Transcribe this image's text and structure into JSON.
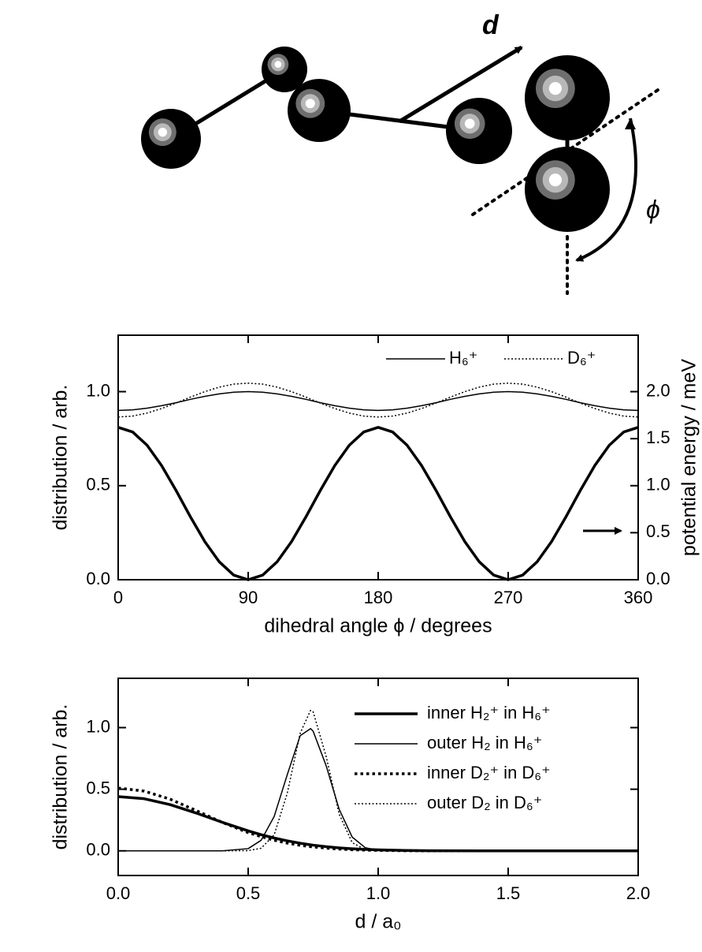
{
  "diagram": {
    "vector_label": "d",
    "angle_label": "ϕ"
  },
  "chart_data": [
    {
      "type": "line",
      "xlabel": "dihedral angle ϕ / degrees",
      "ylabel": "distribution / arb.",
      "y2label": "potential energy / meV",
      "x": [
        0,
        10,
        20,
        30,
        40,
        50,
        60,
        70,
        80,
        90,
        100,
        110,
        120,
        130,
        140,
        150,
        160,
        170,
        180,
        190,
        200,
        210,
        220,
        230,
        240,
        250,
        260,
        270,
        280,
        290,
        300,
        310,
        320,
        330,
        340,
        350,
        360
      ],
      "xlim": [
        0,
        360
      ],
      "xticks": [
        0,
        90,
        180,
        270,
        360
      ],
      "ylim": [
        0,
        1.3
      ],
      "yticks": [
        {
          "value": 0,
          "label": "0.0"
        },
        {
          "value": 0.5,
          "label": "0.5"
        },
        {
          "value": 1,
          "label": "1.0"
        }
      ],
      "y2lim": [
        0,
        2.6
      ],
      "y2ticks": [
        {
          "value": 0,
          "label": "0.0"
        },
        {
          "value": 0.5,
          "label": "0.5"
        },
        {
          "value": 1,
          "label": "1.0"
        },
        {
          "value": 1.5,
          "label": "1.5"
        },
        {
          "value": 2,
          "label": "2.0"
        }
      ],
      "legend": "upper right",
      "series": [
        {
          "name": "H₆⁺",
          "color": "#000000",
          "style": "solid",
          "line_width": 1.5,
          "values": [
            0.9,
            0.903,
            0.912,
            0.925,
            0.941,
            0.959,
            0.975,
            0.988,
            0.997,
            1.0,
            0.997,
            0.988,
            0.975,
            0.959,
            0.941,
            0.925,
            0.912,
            0.903,
            0.9,
            0.903,
            0.912,
            0.925,
            0.941,
            0.959,
            0.975,
            0.988,
            0.997,
            1.0,
            0.997,
            0.988,
            0.975,
            0.959,
            0.941,
            0.925,
            0.912,
            0.903,
            0.9
          ]
        },
        {
          "name": "D₆⁺",
          "color": "#000000",
          "style": "dotted",
          "line_width": 1.5,
          "values": [
            0.865,
            0.87,
            0.886,
            0.91,
            0.939,
            0.971,
            1.0,
            1.024,
            1.04,
            1.045,
            1.04,
            1.024,
            1.0,
            0.971,
            0.939,
            0.91,
            0.886,
            0.87,
            0.865,
            0.87,
            0.886,
            0.91,
            0.939,
            0.971,
            1.0,
            1.024,
            1.04,
            1.045,
            1.04,
            1.024,
            1.0,
            0.971,
            0.939,
            0.91,
            0.886,
            0.87,
            0.865
          ]
        },
        {
          "axis": "y2",
          "color": "#000000",
          "style": "solid",
          "line_width": 3.5,
          "values": [
            1.62,
            1.571,
            1.43,
            1.215,
            0.951,
            0.669,
            0.405,
            0.19,
            0.049,
            0,
            0.049,
            0.19,
            0.405,
            0.669,
            0.951,
            1.215,
            1.43,
            1.571,
            1.62,
            1.571,
            1.43,
            1.215,
            0.951,
            0.669,
            0.405,
            0.19,
            0.049,
            0,
            0.049,
            0.19,
            0.405,
            0.669,
            0.951,
            1.215,
            1.43,
            1.571,
            1.62
          ]
        }
      ]
    },
    {
      "type": "line",
      "xlabel": "d / a₀",
      "ylabel": "distribution / arb.",
      "x": [
        0,
        0.1,
        0.2,
        0.3,
        0.4,
        0.5,
        0.55,
        0.6,
        0.65,
        0.7,
        0.74,
        0.75,
        0.8,
        0.85,
        0.9,
        0.95,
        1.0,
        1.1,
        1.2,
        1.4,
        1.6,
        1.8,
        2.0
      ],
      "xlim": [
        0,
        2
      ],
      "xticks": [
        {
          "value": 0,
          "label": "0.0"
        },
        {
          "value": 0.5,
          "label": "0.5"
        },
        {
          "value": 1,
          "label": "1.0"
        },
        {
          "value": 1.5,
          "label": "1.5"
        },
        {
          "value": 2,
          "label": "2.0"
        }
      ],
      "ylim": [
        -0.2,
        1.4
      ],
      "yticks": [
        {
          "value": 0,
          "label": "0.0"
        },
        {
          "value": 0.5,
          "label": "0.5"
        },
        {
          "value": 1,
          "label": "1.0"
        }
      ],
      "legend": "right",
      "series": [
        {
          "name": "inner H₂⁺ in H₆⁺",
          "color": "#000000",
          "style": "solid",
          "line_width": 3.5,
          "values": [
            0.44,
            0.423,
            0.375,
            0.307,
            0.232,
            0.162,
            0.131,
            0.104,
            0.081,
            0.062,
            0.049,
            0.046,
            0.034,
            0.024,
            0.017,
            0.012,
            0.008,
            0.003,
            0.001,
            0,
            0,
            0,
            0
          ]
        },
        {
          "name": "outer H₂ in H₆⁺",
          "color": "#000000",
          "style": "solid",
          "line_width": 1.5,
          "values": [
            0,
            0,
            0,
            0,
            0,
            0.018,
            0.086,
            0.279,
            0.616,
            0.934,
            0.992,
            0.97,
            0.69,
            0.337,
            0.112,
            0.026,
            0.004,
            0,
            0,
            0,
            0,
            0,
            0
          ]
        },
        {
          "name": "inner D₂⁺ in D₆⁺",
          "color": "#000000",
          "style": "dotted-thick",
          "line_width": 3.5,
          "values": [
            0.51,
            0.485,
            0.419,
            0.327,
            0.231,
            0.148,
            0.115,
            0.086,
            0.063,
            0.045,
            0.034,
            0.032,
            0.022,
            0.014,
            0.009,
            0.006,
            0.004,
            0.001,
            0,
            0,
            0,
            0,
            0
          ]
        },
        {
          "name": "outer D₂ in D₆⁺",
          "color": "#000000",
          "style": "dotted",
          "line_width": 1.5,
          "values": [
            0,
            0,
            0,
            0,
            0,
            0.002,
            0.021,
            0.13,
            0.465,
            0.955,
            1.14,
            1.127,
            0.765,
            0.298,
            0.067,
            0.009,
            0,
            0,
            0,
            0,
            0,
            0,
            0
          ]
        }
      ]
    }
  ]
}
